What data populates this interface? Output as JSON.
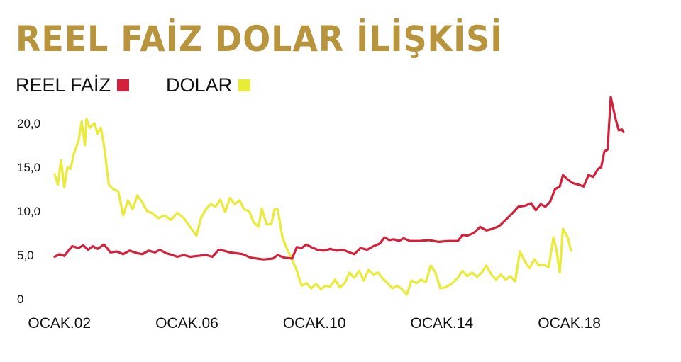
{
  "chart_data": {
    "type": "line",
    "title": "REEL FAİZ DOLAR İLİŞKİSİ",
    "xlabel": "",
    "ylabel": "",
    "x_range": [
      2001.8,
      2019.0
    ],
    "ylim": [
      0,
      22
    ],
    "y_ticks": [
      0,
      5,
      10,
      15,
      20
    ],
    "y_tick_labels": [
      "0",
      "5,0",
      "10,0",
      "15,0",
      "20,0"
    ],
    "x_ticks": [
      2002,
      2006,
      2010,
      2014,
      2018
    ],
    "x_tick_labels": [
      "OCAK.02",
      "OCAK.06",
      "OCAK.10",
      "OCAK.14",
      "OCAK.18"
    ],
    "grid": false,
    "legend": "top-left",
    "series": [
      {
        "name": "REEL FAİZ",
        "color": "#d4203a",
        "points": [
          [
            2001.85,
            4.8
          ],
          [
            2002.0,
            5.1
          ],
          [
            2002.15,
            4.9
          ],
          [
            2002.4,
            6.0
          ],
          [
            2002.6,
            5.8
          ],
          [
            2002.75,
            6.1
          ],
          [
            2002.9,
            5.6
          ],
          [
            2003.05,
            6.0
          ],
          [
            2003.2,
            5.7
          ],
          [
            2003.4,
            6.2
          ],
          [
            2003.6,
            5.3
          ],
          [
            2003.8,
            5.4
          ],
          [
            2004.0,
            5.1
          ],
          [
            2004.2,
            5.5
          ],
          [
            2004.45,
            5.2
          ],
          [
            2004.6,
            5.1
          ],
          [
            2004.8,
            5.5
          ],
          [
            2005.0,
            5.3
          ],
          [
            2005.15,
            5.6
          ],
          [
            2005.35,
            5.2
          ],
          [
            2005.55,
            5.0
          ],
          [
            2005.7,
            4.8
          ],
          [
            2005.9,
            5.0
          ],
          [
            2006.1,
            4.8
          ],
          [
            2006.35,
            4.9
          ],
          [
            2006.6,
            5.0
          ],
          [
            2006.8,
            4.8
          ],
          [
            2007.0,
            5.6
          ],
          [
            2007.15,
            5.5
          ],
          [
            2007.35,
            5.3
          ],
          [
            2007.55,
            5.2
          ],
          [
            2007.75,
            5.1
          ],
          [
            2008.0,
            4.7
          ],
          [
            2008.2,
            4.6
          ],
          [
            2008.4,
            4.5
          ],
          [
            2008.7,
            4.6
          ],
          [
            2008.85,
            5.0
          ],
          [
            2009.05,
            4.7
          ],
          [
            2009.3,
            4.6
          ],
          [
            2009.45,
            5.9
          ],
          [
            2009.6,
            5.8
          ],
          [
            2009.75,
            6.2
          ],
          [
            2009.9,
            5.9
          ],
          [
            2010.1,
            5.6
          ],
          [
            2010.3,
            5.5
          ],
          [
            2010.5,
            5.7
          ],
          [
            2010.7,
            5.5
          ],
          [
            2010.9,
            5.6
          ],
          [
            2011.1,
            5.3
          ],
          [
            2011.25,
            5.1
          ],
          [
            2011.45,
            5.8
          ],
          [
            2011.65,
            5.6
          ],
          [
            2011.85,
            6.0
          ],
          [
            2012.05,
            6.3
          ],
          [
            2012.2,
            7.0
          ],
          [
            2012.35,
            6.7
          ],
          [
            2012.5,
            6.8
          ],
          [
            2012.65,
            6.6
          ],
          [
            2012.8,
            6.9
          ],
          [
            2013.0,
            6.6
          ],
          [
            2013.3,
            6.6
          ],
          [
            2013.6,
            6.7
          ],
          [
            2013.9,
            6.5
          ],
          [
            2014.2,
            6.6
          ],
          [
            2014.5,
            6.6
          ],
          [
            2014.65,
            7.3
          ],
          [
            2014.8,
            7.2
          ],
          [
            2015.0,
            7.5
          ],
          [
            2015.2,
            8.2
          ],
          [
            2015.4,
            7.8
          ],
          [
            2015.6,
            8.0
          ],
          [
            2015.8,
            8.3
          ],
          [
            2016.0,
            9.0
          ],
          [
            2016.2,
            9.7
          ],
          [
            2016.4,
            10.5
          ],
          [
            2016.6,
            10.6
          ],
          [
            2016.8,
            10.9
          ],
          [
            2016.95,
            10.1
          ],
          [
            2017.1,
            10.8
          ],
          [
            2017.25,
            10.5
          ],
          [
            2017.4,
            11.1
          ],
          [
            2017.55,
            12.5
          ],
          [
            2017.7,
            12.8
          ],
          [
            2017.8,
            14.1
          ],
          [
            2017.95,
            13.6
          ],
          [
            2018.1,
            13.2
          ],
          [
            2018.3,
            13.0
          ],
          [
            2018.45,
            12.8
          ],
          [
            2018.6,
            14.1
          ],
          [
            2018.75,
            13.9
          ],
          [
            2018.9,
            14.8
          ],
          [
            2019.0,
            15.0
          ],
          [
            2019.1,
            16.8
          ],
          [
            2019.2,
            17.0
          ],
          [
            2019.3,
            23.0
          ],
          [
            2019.45,
            20.5
          ],
          [
            2019.55,
            19.2
          ],
          [
            2019.65,
            19.3
          ],
          [
            2019.7,
            19.0
          ]
        ]
      },
      {
        "name": "DOLAR",
        "color": "#eaea38",
        "points": [
          [
            2001.85,
            14.2
          ],
          [
            2001.95,
            13.0
          ],
          [
            2002.05,
            15.8
          ],
          [
            2002.15,
            12.7
          ],
          [
            2002.25,
            15.0
          ],
          [
            2002.35,
            14.8
          ],
          [
            2002.45,
            16.5
          ],
          [
            2002.6,
            18.0
          ],
          [
            2002.7,
            20.2
          ],
          [
            2002.8,
            17.5
          ],
          [
            2002.85,
            20.5
          ],
          [
            2002.95,
            19.5
          ],
          [
            2003.1,
            20.0
          ],
          [
            2003.2,
            18.8
          ],
          [
            2003.3,
            19.5
          ],
          [
            2003.4,
            17.5
          ],
          [
            2003.55,
            13.0
          ],
          [
            2003.7,
            12.5
          ],
          [
            2003.85,
            12.2
          ],
          [
            2004.0,
            9.5
          ],
          [
            2004.15,
            11.2
          ],
          [
            2004.3,
            10.2
          ],
          [
            2004.45,
            11.8
          ],
          [
            2004.6,
            11.0
          ],
          [
            2004.75,
            10.0
          ],
          [
            2004.9,
            9.8
          ],
          [
            2005.1,
            9.2
          ],
          [
            2005.3,
            9.5
          ],
          [
            2005.5,
            9.0
          ],
          [
            2005.7,
            9.8
          ],
          [
            2005.9,
            9.2
          ],
          [
            2006.1,
            8.2
          ],
          [
            2006.3,
            7.2
          ],
          [
            2006.45,
            9.3
          ],
          [
            2006.6,
            10.2
          ],
          [
            2006.75,
            10.8
          ],
          [
            2006.9,
            10.5
          ],
          [
            2007.05,
            11.3
          ],
          [
            2007.2,
            9.9
          ],
          [
            2007.35,
            11.5
          ],
          [
            2007.5,
            10.8
          ],
          [
            2007.65,
            11.2
          ],
          [
            2007.8,
            10.2
          ],
          [
            2007.95,
            10.0
          ],
          [
            2008.1,
            8.7
          ],
          [
            2008.25,
            8.2
          ],
          [
            2008.35,
            10.3
          ],
          [
            2008.5,
            8.5
          ],
          [
            2008.65,
            8.5
          ],
          [
            2008.75,
            10.2
          ],
          [
            2008.85,
            10.2
          ],
          [
            2009.0,
            7.0
          ],
          [
            2009.15,
            5.6
          ],
          [
            2009.3,
            4.5
          ],
          [
            2009.45,
            3.2
          ],
          [
            2009.6,
            1.5
          ],
          [
            2009.75,
            1.8
          ],
          [
            2009.9,
            1.2
          ],
          [
            2010.05,
            1.7
          ],
          [
            2010.2,
            1.1
          ],
          [
            2010.35,
            1.5
          ],
          [
            2010.5,
            1.4
          ],
          [
            2010.65,
            2.2
          ],
          [
            2010.8,
            1.3
          ],
          [
            2010.95,
            1.8
          ],
          [
            2011.1,
            3.0
          ],
          [
            2011.25,
            2.4
          ],
          [
            2011.4,
            3.2
          ],
          [
            2011.55,
            2.1
          ],
          [
            2011.7,
            3.3
          ],
          [
            2011.85,
            2.8
          ],
          [
            2012.0,
            3.0
          ],
          [
            2012.15,
            2.3
          ],
          [
            2012.3,
            1.8
          ],
          [
            2012.45,
            1.2
          ],
          [
            2012.6,
            1.5
          ],
          [
            2012.75,
            1.1
          ],
          [
            2012.9,
            0.5
          ],
          [
            2013.05,
            2.1
          ],
          [
            2013.2,
            1.8
          ],
          [
            2013.35,
            2.2
          ],
          [
            2013.5,
            1.9
          ],
          [
            2013.65,
            3.8
          ],
          [
            2013.8,
            3.0
          ],
          [
            2013.95,
            1.2
          ],
          [
            2014.1,
            1.3
          ],
          [
            2014.3,
            1.7
          ],
          [
            2014.5,
            2.4
          ],
          [
            2014.65,
            3.2
          ],
          [
            2014.8,
            2.6
          ],
          [
            2014.95,
            3.0
          ],
          [
            2015.1,
            2.5
          ],
          [
            2015.25,
            3.0
          ],
          [
            2015.4,
            3.8
          ],
          [
            2015.55,
            2.8
          ],
          [
            2015.7,
            2.2
          ],
          [
            2015.85,
            2.8
          ],
          [
            2016.0,
            2.2
          ],
          [
            2016.15,
            2.6
          ],
          [
            2016.3,
            2.0
          ],
          [
            2016.45,
            5.4
          ],
          [
            2016.6,
            4.3
          ],
          [
            2016.75,
            3.5
          ],
          [
            2016.9,
            4.5
          ],
          [
            2017.05,
            3.8
          ],
          [
            2017.2,
            3.9
          ],
          [
            2017.35,
            3.6
          ],
          [
            2017.5,
            7.0
          ],
          [
            2017.6,
            5.5
          ],
          [
            2017.7,
            3.0
          ],
          [
            2017.8,
            8.0
          ],
          [
            2017.95,
            7.0
          ],
          [
            2018.05,
            5.5
          ]
        ]
      }
    ]
  }
}
